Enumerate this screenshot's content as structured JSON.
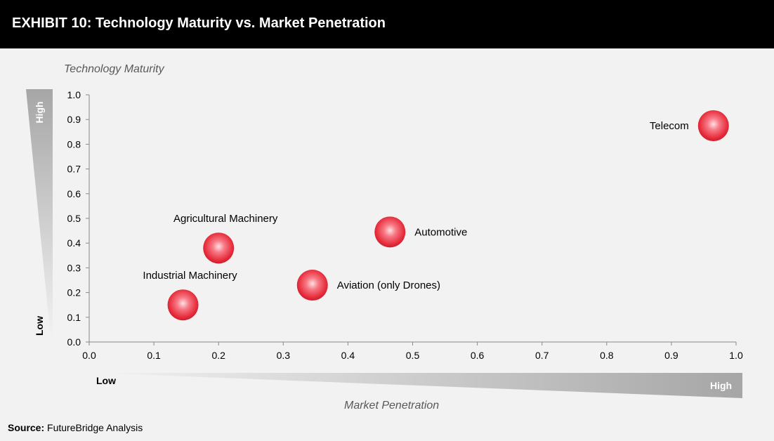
{
  "header": {
    "title": "EXHIBIT 10: Technology Maturity vs. Market Penetration"
  },
  "footer": {
    "source_label": "Source:",
    "source_text": "FutureBridge Analysis"
  },
  "chart_data": {
    "type": "scatter",
    "ylabel": "Technology Maturity",
    "xlabel": "Market Penetration",
    "y_indicator": {
      "high": "High",
      "low": "Low"
    },
    "x_indicator": {
      "low": "Low",
      "high": "High"
    },
    "xlim": [
      0.0,
      1.0
    ],
    "ylim": [
      0.0,
      1.0
    ],
    "x_ticks": [
      "0.0",
      "0.1",
      "0.2",
      "0.3",
      "0.4",
      "0.5",
      "0.6",
      "0.7",
      "0.8",
      "0.9",
      "1.0"
    ],
    "y_ticks": [
      "0.0",
      "0.1",
      "0.2",
      "0.3",
      "0.4",
      "0.5",
      "0.6",
      "0.7",
      "0.8",
      "0.9",
      "1.0"
    ],
    "grid": false,
    "marker_color": "#e8303f",
    "points": [
      {
        "label": "Telecom",
        "x": 0.965,
        "y": 0.875,
        "label_pos": "left"
      },
      {
        "label": "Automotive",
        "x": 0.465,
        "y": 0.445,
        "label_pos": "right"
      },
      {
        "label": "Agricultural Machinery",
        "x": 0.2,
        "y": 0.38,
        "label_pos": "above"
      },
      {
        "label": "Aviation (only Drones)",
        "x": 0.345,
        "y": 0.23,
        "label_pos": "right"
      },
      {
        "label": "Industrial Machinery",
        "x": 0.145,
        "y": 0.15,
        "label_pos": "above"
      }
    ]
  }
}
